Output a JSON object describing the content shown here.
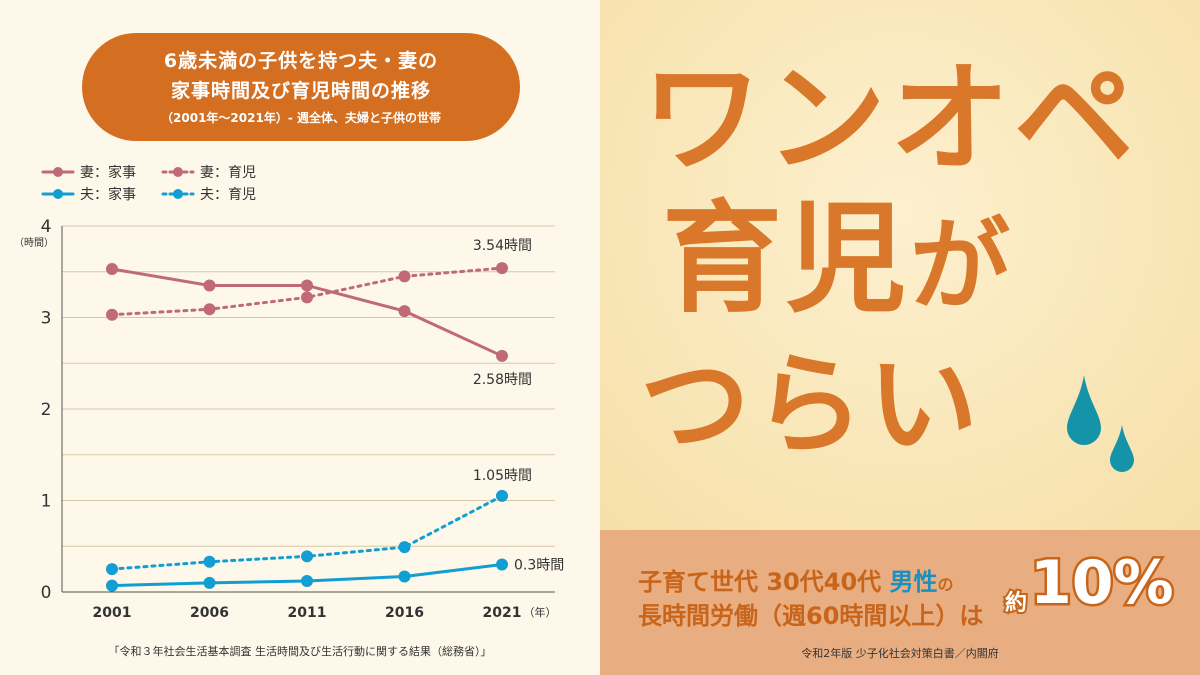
{
  "title": {
    "line1": "6歳未満の子供を持つ夫・妻の",
    "line2": "家事時間及び育児時間の推移",
    "line3": "（2001年～2021年）- 週全体、夫婦と子供の世帯"
  },
  "chart_data": {
    "type": "line",
    "x": [
      2001,
      2006,
      2011,
      2016,
      2021
    ],
    "x_tick_labels": [
      "2001",
      "2006",
      "2011",
      "2016",
      "2021"
    ],
    "xunit": "（年）",
    "yunit": "（時間）",
    "ylim": [
      0,
      4
    ],
    "y_ticks": [
      "0",
      "1",
      "2",
      "3",
      "4"
    ],
    "grid": true,
    "legend": "top-left",
    "series": [
      {
        "name": "妻：家事",
        "color": "#c06a78",
        "dash": false,
        "values": [
          3.53,
          3.35,
          3.35,
          3.07,
          2.58
        ]
      },
      {
        "name": "妻：育児",
        "color": "#c06a78",
        "dash": true,
        "values": [
          3.03,
          3.09,
          3.22,
          3.45,
          3.54
        ]
      },
      {
        "name": "夫：家事",
        "color": "#119ed3",
        "dash": false,
        "values": [
          0.07,
          0.1,
          0.12,
          0.17,
          0.3
        ]
      },
      {
        "name": "夫：育児",
        "color": "#119ed3",
        "dash": true,
        "values": [
          0.25,
          0.33,
          0.39,
          0.49,
          1.05
        ]
      }
    ],
    "annotations": [
      {
        "text": "3.54時間",
        "series": 1,
        "index": 4
      },
      {
        "text": "2.58時間",
        "series": 0,
        "index": 4
      },
      {
        "text": "1.05時間",
        "series": 3,
        "index": 4
      },
      {
        "text": "0.3時間",
        "series": 2,
        "index": 4
      }
    ]
  },
  "source_left": "「令和３年社会生活基本調査 生活時間及び生活行動に関する結果（総務省）」",
  "headline": {
    "l1": "ワンオペ",
    "l2a": "育児",
    "l2b": "が",
    "l3": "つらい"
  },
  "bottom": {
    "a": "子育て世代 30代40代 ",
    "b": "男性",
    "c": "の",
    "d": "長時間労働（週60時間以上）は",
    "yaku": "約",
    "pct": "10%",
    "source": "令和2年版 少子化社会対策白書／内閣府"
  }
}
